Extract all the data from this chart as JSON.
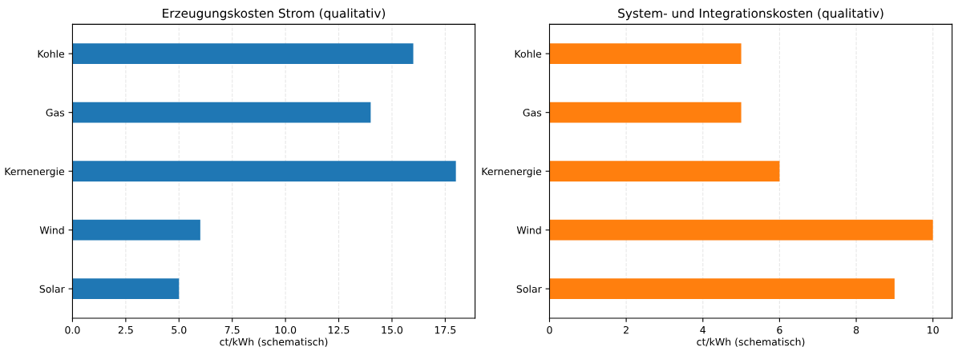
{
  "chart_data": [
    {
      "type": "bar",
      "orientation": "horizontal",
      "title": "Erzeugungskosten Strom (qualitativ)",
      "xlabel": "ct/kWh (schematisch)",
      "categories": [
        "Kohle",
        "Gas",
        "Kernenergie",
        "Wind",
        "Solar"
      ],
      "series": [
        {
          "color": "#1f77b4",
          "values": [
            16,
            14,
            18,
            6,
            5
          ]
        }
      ],
      "xlim": [
        0,
        18.9
      ],
      "xticks": [
        {
          "value": 0,
          "label": "0.0"
        },
        {
          "value": 2.5,
          "label": "2.5"
        },
        {
          "value": 5,
          "label": "5.0"
        },
        {
          "value": 7.5,
          "label": "7.5"
        },
        {
          "value": 10,
          "label": "10.0"
        },
        {
          "value": 12.5,
          "label": "12.5"
        },
        {
          "value": 15,
          "label": "15.0"
        },
        {
          "value": 17.5,
          "label": "17.5"
        }
      ],
      "grid": "x",
      "line_style": "dashed"
    },
    {
      "type": "bar",
      "orientation": "horizontal",
      "title": "System- und Integrationskosten (qualitativ)",
      "xlabel": "ct/kWh (schematisch)",
      "categories": [
        "Kohle",
        "Gas",
        "Kernenergie",
        "Wind",
        "Solar"
      ],
      "series": [
        {
          "color": "#ff7f0e",
          "values": [
            5,
            5,
            6,
            10,
            9
          ]
        }
      ],
      "xlim": [
        0,
        10.5
      ],
      "xticks": [
        0,
        2,
        4,
        6,
        8,
        10
      ],
      "grid": "x",
      "line_style": "dashed"
    }
  ]
}
